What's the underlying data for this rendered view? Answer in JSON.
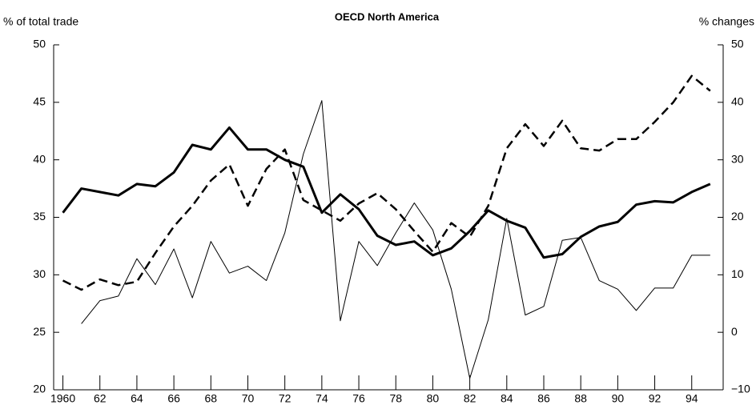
{
  "chart_data": {
    "type": "line",
    "title": "OECD North America",
    "y_label": "% of total trade",
    "y2_label": "% changes",
    "x": [
      1960,
      1961,
      1962,
      1963,
      1964,
      1965,
      1966,
      1967,
      1968,
      1969,
      1970,
      1971,
      1972,
      1973,
      1974,
      1975,
      1976,
      1977,
      1978,
      1979,
      1980,
      1981,
      1982,
      1983,
      1984,
      1985,
      1986,
      1987,
      1988,
      1989,
      1990,
      1991,
      1992,
      1993,
      1994,
      1995
    ],
    "series": [
      {
        "color": "#000000",
        "line_width": 3,
        "dashed": false,
        "axis": "y",
        "values": [
          35.4,
          37.5,
          37.2,
          36.9,
          37.9,
          37.7,
          38.9,
          41.3,
          40.9,
          42.8,
          40.9,
          40.9,
          40.0,
          39.4,
          35.4,
          37.0,
          35.7,
          33.4,
          32.6,
          32.9,
          31.7,
          32.3,
          33.8,
          35.6,
          34.7,
          34.1,
          31.5,
          31.8,
          33.3,
          34.2,
          34.6,
          36.1,
          36.4,
          36.3,
          37.2,
          37.9
        ]
      },
      {
        "color": "#000000",
        "line_width": 2.5,
        "dashed": true,
        "axis": "y",
        "values": [
          29.5,
          28.7,
          29.6,
          29.1,
          29.4,
          31.9,
          34.2,
          36.0,
          38.2,
          39.6,
          36.0,
          39.2,
          40.9,
          36.5,
          35.6,
          34.7,
          36.2,
          37.1,
          35.7,
          33.8,
          32.0,
          34.5,
          33.3,
          36.0,
          41.0,
          43.1,
          41.2,
          43.4,
          41.0,
          40.8,
          41.8,
          41.8,
          43.3,
          45.0,
          47.3,
          46.0
        ]
      },
      {
        "color": "#000000",
        "line_width": 1,
        "dashed": false,
        "axis": "y2",
        "values": [
          null,
          1.5,
          5.5,
          6.3,
          12.8,
          8.3,
          14.5,
          6.0,
          15.8,
          10.3,
          11.5,
          9.0,
          17.3,
          31.0,
          40.3,
          2.0,
          15.8,
          11.6,
          17.3,
          22.5,
          17.8,
          7.5,
          -8,
          2.2,
          19.8,
          3.0,
          4.5,
          16.0,
          16.5,
          9.0,
          7.5,
          3.8,
          7.7,
          7.7,
          13.4,
          13.4
        ]
      }
    ],
    "xlim": [
      1959.5,
      1995.7
    ],
    "xticks": [
      1960,
      {
        "value": 1962,
        "label": "62"
      },
      {
        "value": 1964,
        "label": "64"
      },
      {
        "value": 1966,
        "label": "66"
      },
      {
        "value": 1968,
        "label": "68"
      },
      {
        "value": 1970,
        "label": "70"
      },
      {
        "value": 1972,
        "label": "72"
      },
      {
        "value": 1974,
        "label": "74"
      },
      {
        "value": 1976,
        "label": "76"
      },
      {
        "value": 1978,
        "label": "78"
      },
      {
        "value": 1980,
        "label": "80"
      },
      {
        "value": 1982,
        "label": "82"
      },
      {
        "value": 1984,
        "label": "84"
      },
      {
        "value": 1986,
        "label": "86"
      },
      {
        "value": 1988,
        "label": "88"
      },
      {
        "value": 1990,
        "label": "90"
      },
      {
        "value": 1992,
        "label": "92"
      },
      {
        "value": 1994,
        "label": "94"
      }
    ],
    "ylim": [
      20,
      50
    ],
    "yticks": [
      20,
      25,
      30,
      35,
      40,
      45,
      50
    ],
    "y2lim": [
      -10,
      50
    ],
    "y2ticks": [
      {
        "value": -10,
        "label": "−10"
      },
      0,
      10,
      20,
      30,
      40,
      50
    ],
    "grid": false
  }
}
